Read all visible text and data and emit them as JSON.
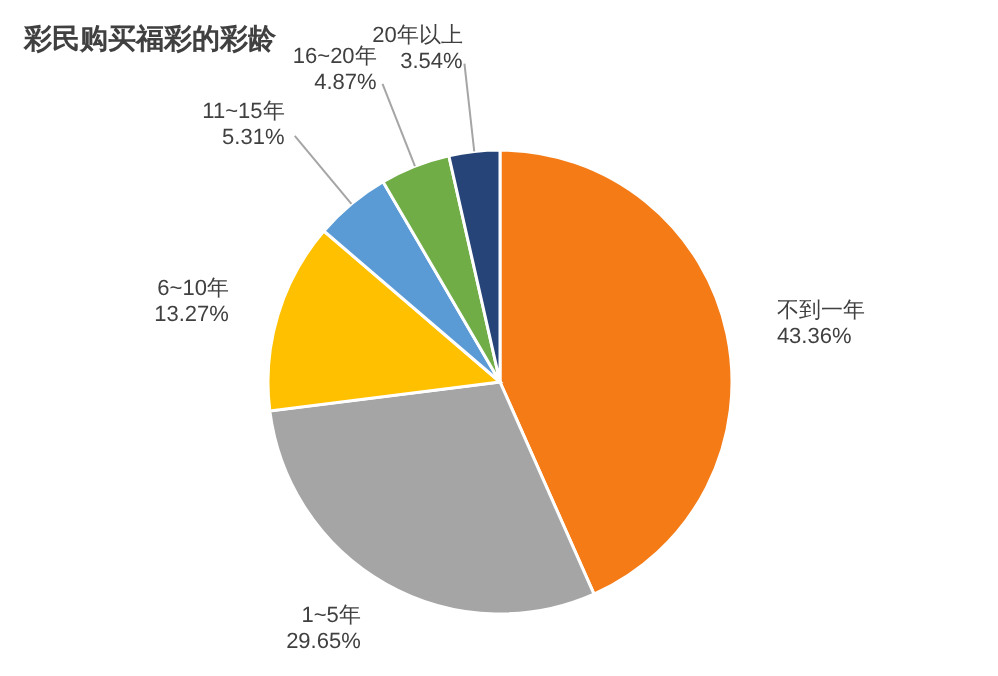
{
  "chart_data": {
    "type": "pie",
    "title": "彩民购买福彩的彩龄",
    "categories": [
      "不到一年",
      "1~5年",
      "6~10年",
      "11~15年",
      "16~20年",
      "20年以上"
    ],
    "values": [
      43.36,
      29.65,
      13.27,
      5.31,
      4.87,
      3.54
    ],
    "value_labels": [
      "43.36%",
      "29.65%",
      "13.27%",
      "5.31%",
      "4.87%",
      "3.54%"
    ],
    "colors": [
      "#f47b16",
      "#a5a5a5",
      "#ffc000",
      "#5b9bd5",
      "#70ad47",
      "#264478"
    ]
  }
}
